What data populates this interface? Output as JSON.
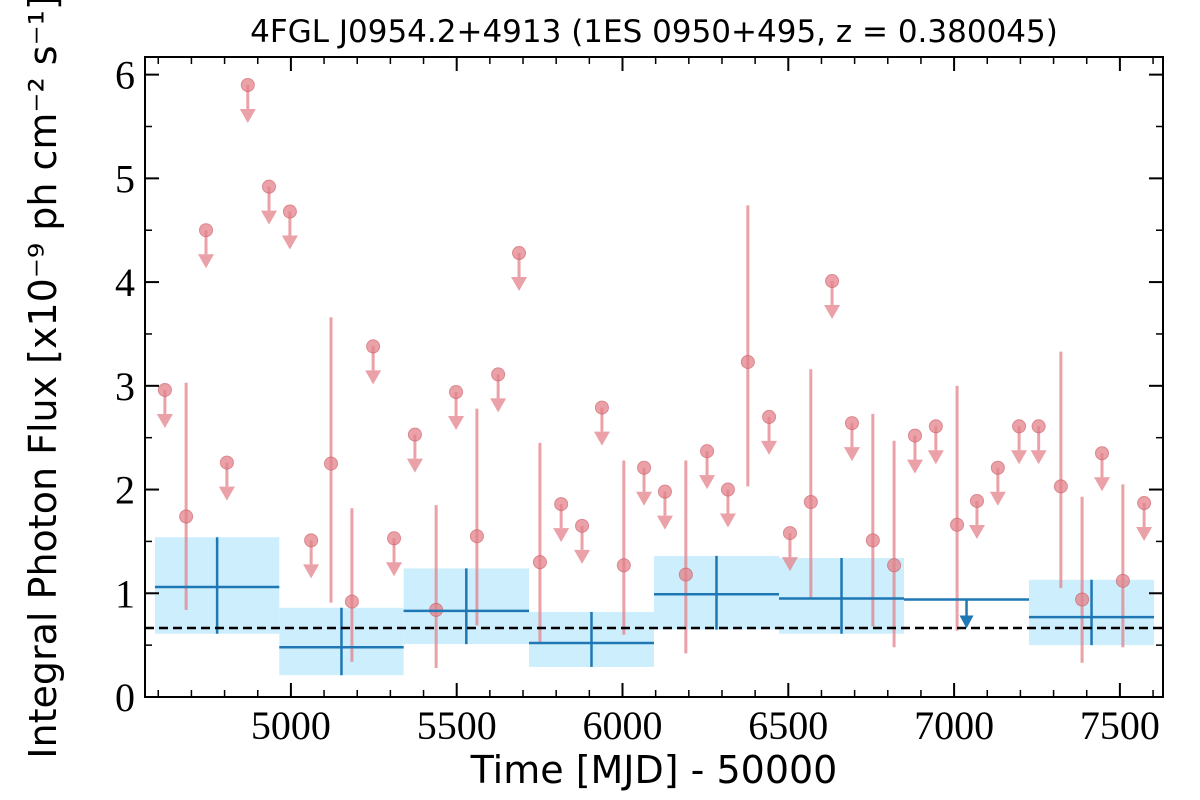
{
  "chart_data": {
    "type": "errorbar",
    "title": "4FGL J0954.2+4913 (1ES 0950+495, z = 0.380045)",
    "xlabel": "Time [MJD] - 50000",
    "ylabel": "Integral Photon Flux [x10⁻⁹ ph cm⁻² s⁻¹]",
    "xlim": [
      4560,
      7630
    ],
    "ylim": [
      0,
      6.17
    ],
    "xticks": [
      5000,
      5500,
      6000,
      6500,
      7000,
      7500
    ],
    "yticks": [
      0,
      1,
      2,
      3,
      4,
      5,
      6
    ],
    "xticks_minor": [
      4600,
      4700,
      4800,
      4900,
      5100,
      5200,
      5300,
      5400,
      5600,
      5700,
      5800,
      5900,
      6100,
      6200,
      6300,
      6400,
      6600,
      6700,
      6800,
      6900,
      7100,
      7200,
      7300,
      7400,
      7600
    ],
    "yticks_minor": [
      0.5,
      1.5,
      2.5,
      3.5,
      4.5,
      5.5
    ],
    "short_bins": {
      "color": "#e3828a",
      "x": [
        4620,
        4684,
        4744,
        4807,
        4870,
        4934,
        4997,
        5061,
        5121,
        5184,
        5248,
        5311,
        5374,
        5438,
        5498,
        5561,
        5625,
        5688,
        5751,
        5815,
        5878,
        5938,
        6004,
        6065,
        6128,
        6191,
        6255,
        6318,
        6378,
        6442,
        6505,
        6568,
        6632,
        6692,
        6755,
        6819,
        6882,
        6945,
        7009,
        7069,
        7132,
        7196,
        7255,
        7322,
        7386,
        7446,
        7509,
        7573
      ],
      "values": [
        2.96,
        1.74,
        4.5,
        2.26,
        5.9,
        4.92,
        4.68,
        1.51,
        2.25,
        0.92,
        3.38,
        1.53,
        2.53,
        0.84,
        2.94,
        1.55,
        3.11,
        4.28,
        1.3,
        1.86,
        1.65,
        2.79,
        1.27,
        2.21,
        1.98,
        1.18,
        2.37,
        2.0,
        3.23,
        2.7,
        1.58,
        1.88,
        4.01,
        2.64,
        1.51,
        1.27,
        2.52,
        2.61,
        1.66,
        1.89,
        2.21,
        2.61,
        2.61,
        2.03,
        0.94,
        2.35,
        1.12,
        1.87
      ],
      "upper_limit": [
        true,
        false,
        true,
        true,
        true,
        true,
        true,
        true,
        false,
        false,
        true,
        true,
        true,
        false,
        true,
        false,
        true,
        true,
        false,
        true,
        true,
        true,
        false,
        true,
        true,
        false,
        true,
        true,
        false,
        true,
        true,
        false,
        true,
        true,
        false,
        false,
        true,
        true,
        false,
        true,
        true,
        true,
        true,
        false,
        false,
        true,
        false,
        true
      ],
      "lo": [
        null,
        0.84,
        null,
        null,
        null,
        null,
        null,
        null,
        0.91,
        0.34,
        null,
        null,
        null,
        0.28,
        null,
        0.69,
        null,
        null,
        0.52,
        null,
        null,
        null,
        0.6,
        null,
        null,
        0.42,
        null,
        null,
        2.03,
        null,
        null,
        0.95,
        null,
        null,
        0.68,
        0.48,
        null,
        null,
        0.64,
        null,
        null,
        null,
        null,
        1.05,
        0.33,
        null,
        0.48,
        null
      ],
      "hi": [
        null,
        3.03,
        null,
        null,
        null,
        null,
        null,
        null,
        3.66,
        1.82,
        null,
        null,
        null,
        1.85,
        null,
        2.78,
        null,
        null,
        2.45,
        null,
        null,
        null,
        2.28,
        null,
        null,
        2.28,
        null,
        null,
        4.74,
        null,
        null,
        3.16,
        null,
        null,
        2.73,
        2.47,
        null,
        null,
        3.0,
        null,
        null,
        null,
        null,
        3.33,
        1.93,
        null,
        2.05,
        null
      ]
    },
    "long_bins": {
      "color": "#1f77b4",
      "band_color": "#cdeefd",
      "x_lo": [
        4590,
        4965,
        5340,
        5718,
        6095,
        6472,
        6849,
        7226
      ],
      "x_hi": [
        4965,
        5340,
        5718,
        6095,
        6472,
        6849,
        7226,
        7603
      ],
      "values": [
        1.06,
        0.48,
        0.83,
        0.52,
        0.99,
        0.95,
        0.94,
        0.77
      ],
      "upper_limit": [
        false,
        false,
        false,
        false,
        false,
        false,
        true,
        false
      ],
      "lo": [
        0.61,
        0.21,
        0.51,
        0.29,
        0.65,
        0.61,
        null,
        0.5
      ],
      "hi": [
        1.54,
        0.86,
        1.24,
        0.82,
        1.36,
        1.34,
        null,
        1.13
      ]
    },
    "reference_line": {
      "value": 0.665,
      "color": "#000000"
    }
  }
}
